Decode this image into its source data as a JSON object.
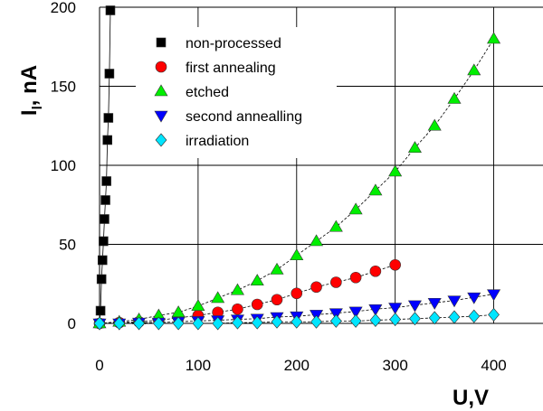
{
  "chart_data": {
    "type": "scatter",
    "xlabel": "U,V",
    "ylabel_main": "I",
    "ylabel_sub": "l",
    "ylabel_rest": ", nA",
    "xlim": [
      0,
      450
    ],
    "ylim": [
      0,
      200
    ],
    "x_ticks": [
      0,
      100,
      200,
      300,
      400
    ],
    "y_ticks": [
      0,
      50,
      100,
      150,
      200
    ],
    "x_tick_labels": [
      "0",
      "100",
      "200",
      "300",
      "400"
    ],
    "y_tick_labels": [
      "0",
      "50",
      "100",
      "150",
      "200"
    ],
    "grid": true,
    "legend_position": "top-left",
    "series": [
      {
        "name": "non-processed",
        "marker": "square",
        "color": "#000000",
        "x": [
          0,
          1,
          2,
          3,
          4,
          5,
          6,
          7,
          8,
          9,
          10,
          11
        ],
        "y": [
          0,
          8,
          28,
          40,
          52,
          66,
          78,
          90,
          116,
          130,
          158,
          198
        ]
      },
      {
        "name": "first annealing",
        "marker": "circle",
        "color": "#ff0000",
        "x": [
          0,
          20,
          40,
          60,
          80,
          100,
          120,
          140,
          160,
          180,
          200,
          220,
          240,
          260,
          280,
          300
        ],
        "y": [
          0,
          0.5,
          1,
          2,
          3.5,
          5,
          7,
          9,
          12,
          15,
          19,
          23,
          26,
          29,
          33,
          37
        ]
      },
      {
        "name": "etched",
        "marker": "triangle-up",
        "color": "#00ee00",
        "x": [
          0,
          20,
          40,
          60,
          80,
          100,
          120,
          140,
          160,
          180,
          200,
          220,
          240,
          260,
          280,
          300,
          320,
          340,
          360,
          380,
          400
        ],
        "y": [
          0,
          1,
          2.5,
          5,
          7,
          11,
          16,
          21,
          27,
          34,
          43,
          52,
          61,
          72,
          84,
          96,
          111,
          125,
          142,
          160,
          180
        ]
      },
      {
        "name": "second annealling",
        "marker": "triangle-down",
        "color": "#0000ff",
        "x": [
          0,
          20,
          40,
          60,
          80,
          100,
          120,
          140,
          160,
          180,
          200,
          220,
          240,
          260,
          280,
          300,
          320,
          340,
          360,
          380,
          400
        ],
        "y": [
          0,
          0,
          0.5,
          0.5,
          1,
          1.5,
          2,
          2.5,
          3,
          4,
          4.5,
          5.5,
          6.5,
          7.5,
          9,
          10,
          11.5,
          13,
          14.5,
          16.5,
          18.5
        ]
      },
      {
        "name": "irradiation",
        "marker": "diamond",
        "color": "#00e5ff",
        "x": [
          0,
          20,
          40,
          60,
          80,
          100,
          120,
          140,
          160,
          180,
          200,
          220,
          240,
          260,
          280,
          300,
          320,
          340,
          360,
          380,
          400
        ],
        "y": [
          0,
          0,
          0,
          0,
          0,
          0,
          0,
          0.5,
          0.5,
          1,
          1,
          1,
          1.5,
          1.5,
          2,
          2.5,
          3,
          3.5,
          4,
          4.5,
          5.5
        ]
      }
    ]
  }
}
